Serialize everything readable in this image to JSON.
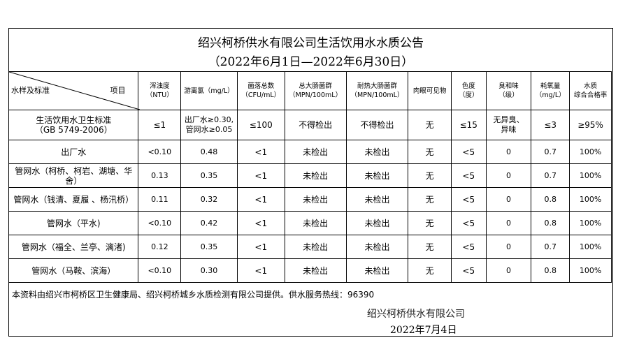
{
  "title": "绍兴柯桥供水有限公司生活饮用水水质公告",
  "period": "（2022年6月1日—2022年6月30日）",
  "header": {
    "row_label": "水样及标准",
    "col_label": "项目",
    "columns": [
      [
        "浑浊度",
        "（NTU）"
      ],
      [
        "游离氯（mg/L）",
        ""
      ],
      [
        "菌落总数",
        "（CFU/mL）"
      ],
      [
        "总大肠菌群",
        "（MPN/100mL）"
      ],
      [
        "耐热大肠菌群",
        "（MPN/100mL）"
      ],
      [
        "肉眼可见物",
        ""
      ],
      [
        "色度",
        "（度）"
      ],
      [
        "臭和味",
        "（级）"
      ],
      [
        "耗氧量",
        "（mg/L）"
      ],
      [
        "水质",
        "综合合格率"
      ]
    ]
  },
  "standard": {
    "name": "生活饮用水卫生标准",
    "code": "（GB 5749-2006）",
    "values": [
      "≤1",
      "出厂水≥0.30,\n管网水≥0.05",
      "≤100",
      "不得检出",
      "不得检出",
      "无",
      "≤15",
      "无异臭、\n异味",
      "≤3",
      "≥95%"
    ]
  },
  "rows": [
    {
      "name": "出厂水",
      "values": [
        "<0.10",
        "0.48",
        "<1",
        "未检出",
        "未检出",
        "无",
        "<5",
        "0",
        "0.7",
        "100%"
      ]
    },
    {
      "name": "管网水（柯桥、柯岩、湖塘、华舍）",
      "values": [
        "0.13",
        "0.35",
        "<1",
        "未检出",
        "未检出",
        "无",
        "<5",
        "0",
        "0.7",
        "100%"
      ]
    },
    {
      "name": "管网水（钱清、夏履 、杨汛桥）",
      "values": [
        "0.11",
        "0.32",
        "<1",
        "未检出",
        "未检出",
        "无",
        "<5",
        "0",
        "0.8",
        "100%"
      ]
    },
    {
      "name": "管网水（平水)",
      "values": [
        "<0.10",
        "0.42",
        "<1",
        "未检出",
        "未检出",
        "无",
        "<5",
        "0",
        "0.8",
        "100%"
      ]
    },
    {
      "name": "管网水（福全、兰亭、漓渚)",
      "values": [
        "0.12",
        "0.35",
        "<1",
        "未检出",
        "未检出",
        "无",
        "<5",
        "0",
        "0.7",
        "100%"
      ]
    },
    {
      "name": "管网水（马鞍、滨海）",
      "values": [
        "<0.10",
        "0.30",
        "<1",
        "未检出",
        "未检出",
        "无",
        "<5",
        "0",
        "0.8",
        "100%"
      ]
    }
  ],
  "footer": {
    "note": "本资料由绍兴市柯桥区卫生健康局、绍兴柯桥城乡水质检测有限公司提供。供水服务热线：96390",
    "company": "绍兴柯桥供水有限公司",
    "date": "2022年7月4日"
  }
}
